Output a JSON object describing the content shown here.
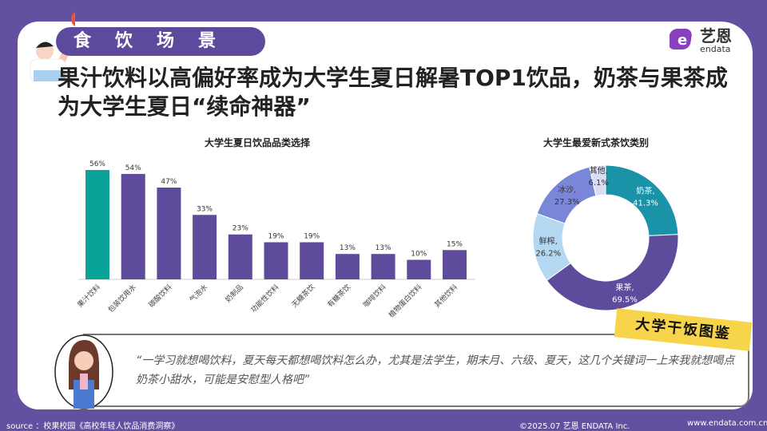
{
  "section_tag": "食饮场景",
  "headline": "果汁饮料以高偏好率成为大学生夏日解暑TOP1饮品，奶茶与果茶成为大学生夏日“续命神器”",
  "logo": {
    "cn": "艺恩",
    "en": "endata"
  },
  "colors": {
    "background": "#6450a0",
    "highlight_bar": "#0aa39a",
    "bar": "#5f4b9b"
  },
  "chart_data": [
    {
      "type": "bar",
      "title": "大学生夏日饮品品类选择",
      "categories": [
        "果汁饮料",
        "包装饮用水",
        "碳酸饮料",
        "气泡水",
        "奶制品",
        "功能性饮料",
        "无糖茶饮",
        "有糖茶饮",
        "咖啡饮料",
        "植物蛋白饮料",
        "其他饮料"
      ],
      "values": [
        56,
        54,
        47,
        33,
        23,
        19,
        19,
        13,
        13,
        10,
        15
      ],
      "labels": [
        "56%",
        "54%",
        "47%",
        "33%",
        "23%",
        "19%",
        "19%",
        "13%",
        "13%",
        "10%",
        "15%"
      ],
      "ylim": [
        0,
        60
      ]
    },
    {
      "type": "pie",
      "title": "大学生最爱新式茶饮类别",
      "slices": [
        {
          "name": "奶茶",
          "value": 41.3,
          "label": "41.3%",
          "color": "#1a93a8"
        },
        {
          "name": "果茶",
          "value": 69.5,
          "label": "69.5%",
          "color": "#5f4b9b"
        },
        {
          "name": "鲜榨",
          "value": 26.2,
          "label": "26.2%",
          "color": "#b4d8f2"
        },
        {
          "name": "冰沙",
          "value": 27.3,
          "label": "27.3%",
          "color": "#7a86d8"
        },
        {
          "name": "其他",
          "value": 6.1,
          "label": "6.1%",
          "color": "#d9dcf4"
        }
      ]
    }
  ],
  "quote": {
    "badge": "大学干饭图鉴",
    "text": "“一学习就想喝饮料，夏天每天都想喝饮料怎么办，尤其是法学生，期末月、六级、夏天，这几个关键词一上来我就想喝点奶茶小甜水，可能是安慰型人格吧”"
  },
  "footer": {
    "source": "source ：校果校园《高校年轻人饮品消费洞察》",
    "copyright": "©2025.07  艺恩 ENDATA Inc.",
    "website": "www.endata.com.cn"
  }
}
